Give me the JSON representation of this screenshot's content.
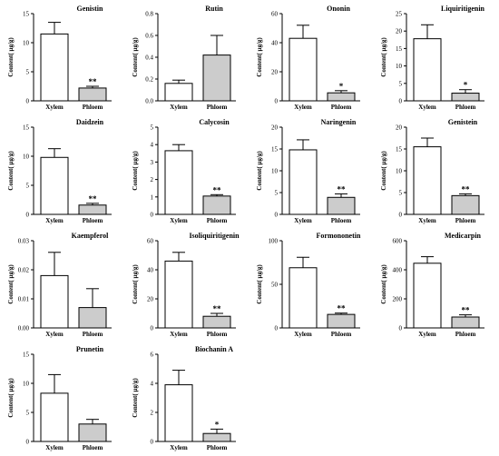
{
  "chart_data": [
    {
      "type": "bar",
      "title": "Genistin",
      "ylabel": "Content( μg/g)",
      "categories": [
        "Xylem",
        "Phloem"
      ],
      "values": [
        11.5,
        2.2
      ],
      "errors": [
        2.0,
        0.3
      ],
      "significance": [
        "",
        "**"
      ],
      "ylim": [
        0,
        15
      ],
      "yticks": [
        "0",
        "5",
        "10",
        "15"
      ],
      "colors": [
        "#ffffff",
        "#cccccc"
      ]
    },
    {
      "type": "bar",
      "title": "Rutin",
      "ylabel": "Content( μg/g)",
      "categories": [
        "Xylem",
        "Phloem"
      ],
      "values": [
        0.16,
        0.42
      ],
      "errors": [
        0.03,
        0.18
      ],
      "significance": [
        "",
        ""
      ],
      "ylim": [
        0,
        0.8
      ],
      "yticks": [
        "0.0",
        "0.2",
        "0.4",
        "0.6",
        "0.8"
      ],
      "colors": [
        "#ffffff",
        "#cccccc"
      ]
    },
    {
      "type": "bar",
      "title": "Ononin",
      "ylabel": "Content( μg/g)",
      "categories": [
        "Xylem",
        "Phloem"
      ],
      "values": [
        43,
        5.5
      ],
      "errors": [
        9,
        1.5
      ],
      "significance": [
        "",
        "*"
      ],
      "ylim": [
        0,
        60
      ],
      "yticks": [
        "0",
        "20",
        "40",
        "60"
      ],
      "colors": [
        "#ffffff",
        "#cccccc"
      ]
    },
    {
      "type": "bar",
      "title": "Liquiritigenin",
      "ylabel": "Content( μg/g)",
      "categories": [
        "Xylem",
        "Phloem"
      ],
      "values": [
        17.8,
        2.2
      ],
      "errors": [
        4.0,
        1.0
      ],
      "significance": [
        "",
        "*"
      ],
      "ylim": [
        0,
        25
      ],
      "yticks": [
        "0",
        "5",
        "10",
        "15",
        "20",
        "25"
      ],
      "colors": [
        "#ffffff",
        "#cccccc"
      ]
    },
    {
      "type": "bar",
      "title": "Daidzein",
      "ylabel": "Content( μg/g)",
      "categories": [
        "Xylem",
        "Phloem"
      ],
      "values": [
        9.8,
        1.6
      ],
      "errors": [
        1.5,
        0.3
      ],
      "significance": [
        "",
        "**"
      ],
      "ylim": [
        0,
        15
      ],
      "yticks": [
        "0",
        "5",
        "10",
        "15"
      ],
      "colors": [
        "#ffffff",
        "#cccccc"
      ]
    },
    {
      "type": "bar",
      "title": "Calycosin",
      "ylabel": "Content( μg/g)",
      "categories": [
        "Xylem",
        "Phloem"
      ],
      "values": [
        3.65,
        1.05
      ],
      "errors": [
        0.35,
        0.08
      ],
      "significance": [
        "",
        "**"
      ],
      "ylim": [
        0,
        5
      ],
      "yticks": [
        "0",
        "1",
        "2",
        "3",
        "4",
        "5"
      ],
      "colors": [
        "#ffffff",
        "#cccccc"
      ]
    },
    {
      "type": "bar",
      "title": "Naringenin",
      "ylabel": "Content( μg/g)",
      "categories": [
        "Xylem",
        "Phloem"
      ],
      "values": [
        14.8,
        3.9
      ],
      "errors": [
        2.3,
        0.8
      ],
      "significance": [
        "",
        "**"
      ],
      "ylim": [
        0,
        20
      ],
      "yticks": [
        "0",
        "5",
        "10",
        "15",
        "20"
      ],
      "colors": [
        "#ffffff",
        "#cccccc"
      ]
    },
    {
      "type": "bar",
      "title": "Genistein",
      "ylabel": "Content( μg/g)",
      "categories": [
        "Xylem",
        "Phloem"
      ],
      "values": [
        15.5,
        4.3
      ],
      "errors": [
        2.0,
        0.4
      ],
      "significance": [
        "",
        "**"
      ],
      "ylim": [
        0,
        20
      ],
      "yticks": [
        "0",
        "5",
        "10",
        "15",
        "20"
      ],
      "colors": [
        "#ffffff",
        "#cccccc"
      ]
    },
    {
      "type": "bar",
      "title": "Kaempferol",
      "ylabel": "Content( μg/g)",
      "categories": [
        "Xylem",
        "Phloem"
      ],
      "values": [
        0.018,
        0.007
      ],
      "errors": [
        0.008,
        0.0065
      ],
      "significance": [
        "",
        ""
      ],
      "ylim": [
        0,
        0.03
      ],
      "yticks": [
        "0.00",
        "0.01",
        "0.02",
        "0.03"
      ],
      "colors": [
        "#ffffff",
        "#cccccc"
      ]
    },
    {
      "type": "bar",
      "title": "Isoliquiritigenin",
      "ylabel": "Content( μg/g)",
      "categories": [
        "Xylem",
        "Phloem"
      ],
      "values": [
        46,
        8
      ],
      "errors": [
        6,
        2
      ],
      "significance": [
        "",
        "**"
      ],
      "ylim": [
        0,
        60
      ],
      "yticks": [
        "0",
        "20",
        "40",
        "60"
      ],
      "colors": [
        "#ffffff",
        "#cccccc"
      ]
    },
    {
      "type": "bar",
      "title": "Formononetin",
      "ylabel": "Content( μg/g)",
      "categories": [
        "Xylem",
        "Phloem"
      ],
      "values": [
        69,
        15.5
      ],
      "errors": [
        12,
        1.5
      ],
      "significance": [
        "",
        "**"
      ],
      "ylim": [
        0,
        100
      ],
      "yticks": [
        "0",
        "50",
        "100"
      ],
      "colors": [
        "#ffffff",
        "#cccccc"
      ]
    },
    {
      "type": "bar",
      "title": "Medicarpin",
      "ylabel": "Content( μg/g)",
      "categories": [
        "Xylem",
        "Phloem"
      ],
      "values": [
        445,
        75
      ],
      "errors": [
        45,
        15
      ],
      "significance": [
        "",
        "**"
      ],
      "ylim": [
        0,
        600
      ],
      "yticks": [
        "0",
        "200",
        "400",
        "600"
      ],
      "colors": [
        "#ffffff",
        "#cccccc"
      ]
    },
    {
      "type": "bar",
      "title": "Prunetin",
      "ylabel": "Content( μg/g)",
      "categories": [
        "Xylem",
        "Phloem"
      ],
      "values": [
        8.3,
        3.0
      ],
      "errors": [
        3.2,
        0.8
      ],
      "significance": [
        "",
        ""
      ],
      "ylim": [
        0,
        15
      ],
      "yticks": [
        "0",
        "5",
        "10",
        "15"
      ],
      "colors": [
        "#ffffff",
        "#cccccc"
      ]
    },
    {
      "type": "bar",
      "title": "Biochanin A",
      "ylabel": "Content( μg/g)",
      "categories": [
        "Xylem",
        "Phloem"
      ],
      "values": [
        3.9,
        0.55
      ],
      "errors": [
        1.0,
        0.3
      ],
      "significance": [
        "",
        "*"
      ],
      "ylim": [
        0,
        6
      ],
      "yticks": [
        "0",
        "2",
        "4",
        "6"
      ],
      "colors": [
        "#ffffff",
        "#cccccc"
      ]
    }
  ]
}
